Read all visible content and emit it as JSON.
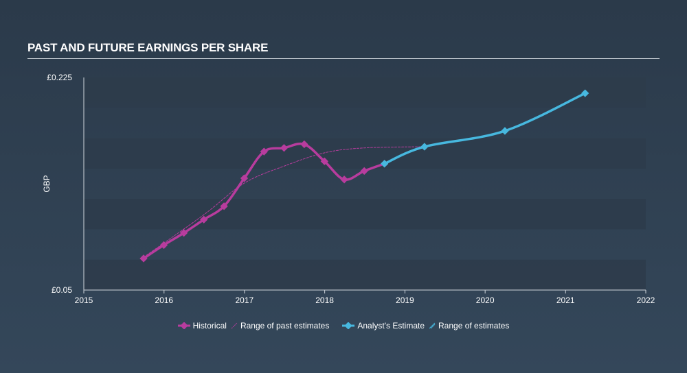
{
  "title": "PAST AND FUTURE EARNINGS PER SHARE",
  "colors": {
    "historical": "#b83c9e",
    "estimate": "#47b8df",
    "band": "#2e3c4b",
    "axis": "#d0d6dc",
    "text": "#ffffff"
  },
  "chart_data": {
    "type": "line",
    "ylabel": "GBP",
    "ylim": [
      0.05,
      0.225
    ],
    "y_tick_labels": [
      "£0.225",
      "£0.05"
    ],
    "xlim": [
      "2015-01-01",
      "2022-01-01"
    ],
    "x_tick_labels": [
      "2015",
      "2016",
      "2017",
      "2018",
      "2019",
      "2020",
      "2021",
      "2022"
    ],
    "grid": false,
    "legend_position": "bottom",
    "series": [
      {
        "name": "Historical",
        "color": "#b83c9e",
        "x": [
          "2015-09-30",
          "2015-12-31",
          "2016-03-31",
          "2016-06-30",
          "2016-09-30",
          "2016-12-31",
          "2017-03-31",
          "2017-06-30",
          "2017-09-30",
          "2017-12-31",
          "2018-03-31",
          "2018-06-30",
          "2018-09-30"
        ],
        "y": [
          0.076,
          0.087,
          0.097,
          0.108,
          0.119,
          0.142,
          0.164,
          0.167,
          0.17,
          0.156,
          0.141,
          0.148,
          0.154
        ]
      },
      {
        "name": "Range of past estimates",
        "color": "#b83c9e",
        "style": "dashed",
        "x": [
          "2015-09-30",
          "2016-06-30",
          "2016-12-31",
          "2017-06-30",
          "2018-01-01",
          "2018-06-30",
          "2019-03-31"
        ],
        "y": [
          0.077,
          0.112,
          0.138,
          0.152,
          0.163,
          0.167,
          0.168
        ]
      },
      {
        "name": "Analyst's Estimate",
        "color": "#47b8df",
        "x": [
          "2018-09-30",
          "2019-03-31",
          "2020-03-31",
          "2021-03-31"
        ],
        "y": [
          0.154,
          0.168,
          0.181,
          0.212
        ]
      }
    ],
    "legend": [
      "Historical",
      "Range of past estimates",
      "Analyst's Estimate",
      "Range of estimates"
    ]
  }
}
